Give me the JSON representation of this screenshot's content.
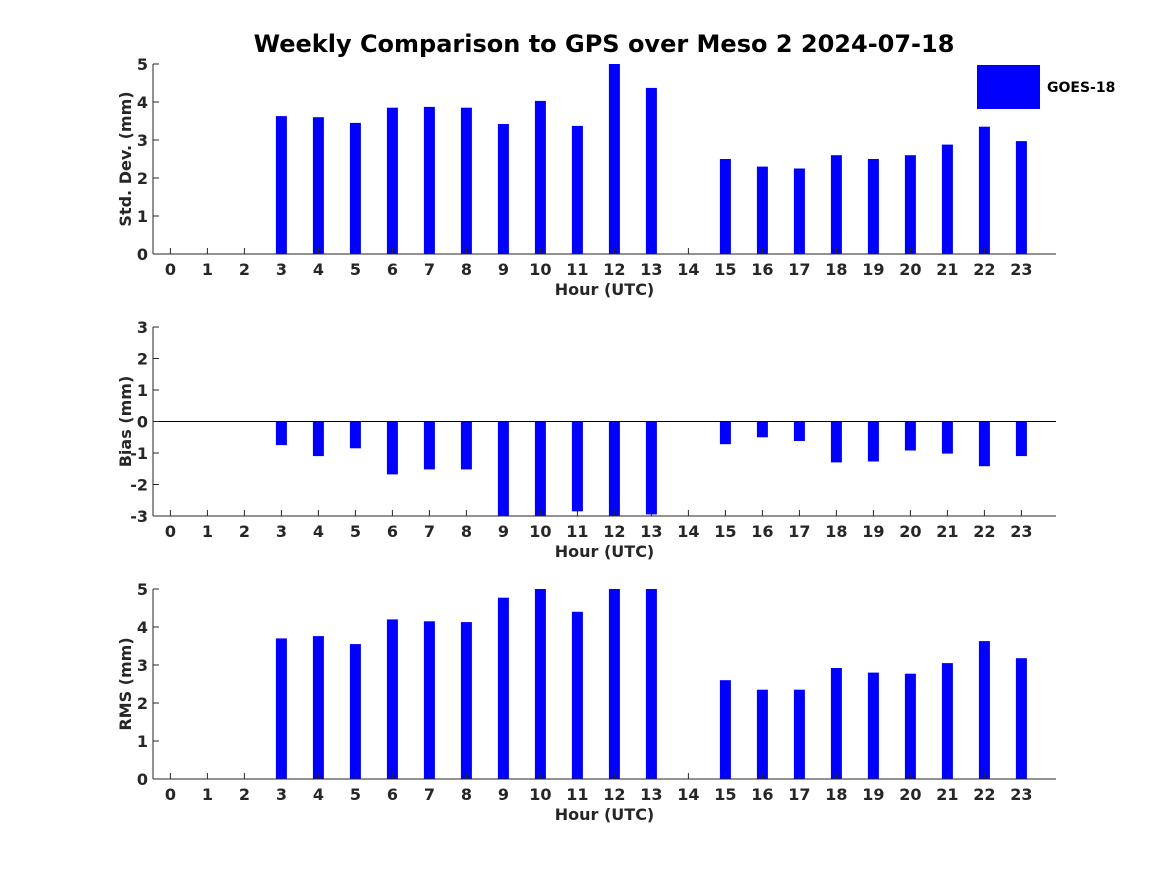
{
  "figure_title": "Weekly Comparison to GPS over Meso 2 2024-07-18",
  "legend": {
    "label": "GOES-18",
    "color": "#0000ff"
  },
  "colors": {
    "bar": "#0000ff",
    "axis": "#262626"
  },
  "chart_data": [
    {
      "type": "bar",
      "title": "Weekly Comparison to GPS over Meso 2 2024-07-18",
      "xlabel": "Hour (UTC)",
      "ylabel": "Std. Dev. (mm)",
      "ylim": [
        0,
        5
      ],
      "yticks": [
        0,
        1,
        2,
        3,
        4,
        5
      ],
      "categories": [
        "0",
        "1",
        "2",
        "3",
        "4",
        "5",
        "6",
        "7",
        "8",
        "9",
        "10",
        "11",
        "12",
        "13",
        "14",
        "15",
        "16",
        "17",
        "18",
        "19",
        "20",
        "21",
        "22",
        "23"
      ],
      "series": [
        {
          "name": "GOES-18",
          "values": [
            null,
            null,
            null,
            3.63,
            3.6,
            3.45,
            3.85,
            3.87,
            3.85,
            3.42,
            4.03,
            3.37,
            5.0,
            4.37,
            null,
            2.5,
            2.3,
            2.25,
            2.6,
            2.5,
            2.6,
            2.88,
            3.35,
            2.97
          ]
        }
      ]
    },
    {
      "type": "bar",
      "xlabel": "Hour (UTC)",
      "ylabel": "Bias (mm)",
      "ylim": [
        -3,
        3
      ],
      "yticks": [
        -3,
        -2,
        -1,
        0,
        1,
        2,
        3
      ],
      "categories": [
        "0",
        "1",
        "2",
        "3",
        "4",
        "5",
        "6",
        "7",
        "8",
        "9",
        "10",
        "11",
        "12",
        "13",
        "14",
        "15",
        "16",
        "17",
        "18",
        "19",
        "20",
        "21",
        "22",
        "23"
      ],
      "series": [
        {
          "name": "GOES-18",
          "values": [
            null,
            null,
            null,
            -0.75,
            -1.1,
            -0.85,
            -1.68,
            -1.52,
            -1.52,
            -3.0,
            -3.0,
            -2.85,
            -3.0,
            -2.95,
            null,
            -0.72,
            -0.5,
            -0.62,
            -1.3,
            -1.27,
            -0.92,
            -1.02,
            -1.42,
            -1.1
          ]
        }
      ]
    },
    {
      "type": "bar",
      "xlabel": "Hour (UTC)",
      "ylabel": "RMS (mm)",
      "ylim": [
        0,
        5
      ],
      "yticks": [
        0,
        1,
        2,
        3,
        4,
        5
      ],
      "categories": [
        "0",
        "1",
        "2",
        "3",
        "4",
        "5",
        "6",
        "7",
        "8",
        "9",
        "10",
        "11",
        "12",
        "13",
        "14",
        "15",
        "16",
        "17",
        "18",
        "19",
        "20",
        "21",
        "22",
        "23"
      ],
      "series": [
        {
          "name": "GOES-18",
          "values": [
            null,
            null,
            null,
            3.7,
            3.76,
            3.55,
            4.2,
            4.15,
            4.13,
            4.77,
            5.0,
            4.4,
            5.0,
            5.0,
            null,
            2.6,
            2.35,
            2.35,
            2.92,
            2.8,
            2.77,
            3.05,
            3.63,
            3.18
          ]
        }
      ]
    }
  ]
}
